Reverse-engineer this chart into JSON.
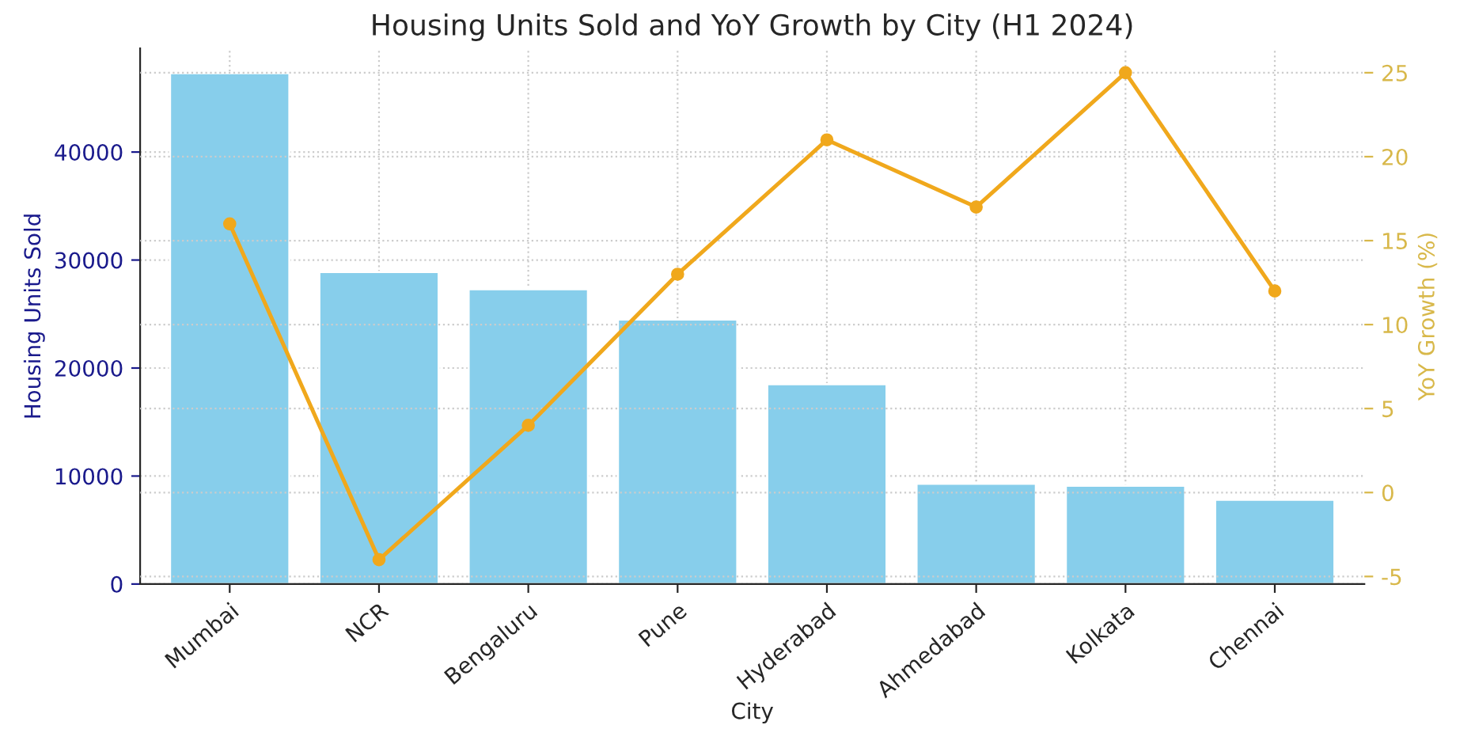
{
  "chart_data": {
    "type": "bar",
    "title": "Housing Units Sold and YoY Growth by City (H1 2024)",
    "xlabel": "City",
    "ylabel": "Housing Units Sold",
    "y2label": "YoY Growth (%)",
    "categories": [
      "Mumbai",
      "NCR",
      "Bengaluru",
      "Pune",
      "Hyderabad",
      "Ahmedabad",
      "Kolkata",
      "Chennai"
    ],
    "series": [
      {
        "color": "#87ceeb",
        "values": [
          47300,
          28900,
          27300,
          24500,
          18500,
          9300,
          9100,
          7800
        ]
      },
      {
        "type": "line",
        "axis": "y2",
        "color": "#f0a81c",
        "marker": "circle",
        "values": [
          16,
          -4,
          4,
          13,
          21,
          17,
          25,
          12
        ]
      }
    ],
    "ylim": [
      0,
      49600
    ],
    "yticks": [
      0,
      10000,
      20000,
      30000,
      40000
    ],
    "y2lim": [
      -5.45,
      26.45
    ],
    "y2ticks": [
      -5,
      0,
      5,
      10,
      15,
      20,
      25
    ],
    "grid": true,
    "legend": false
  }
}
